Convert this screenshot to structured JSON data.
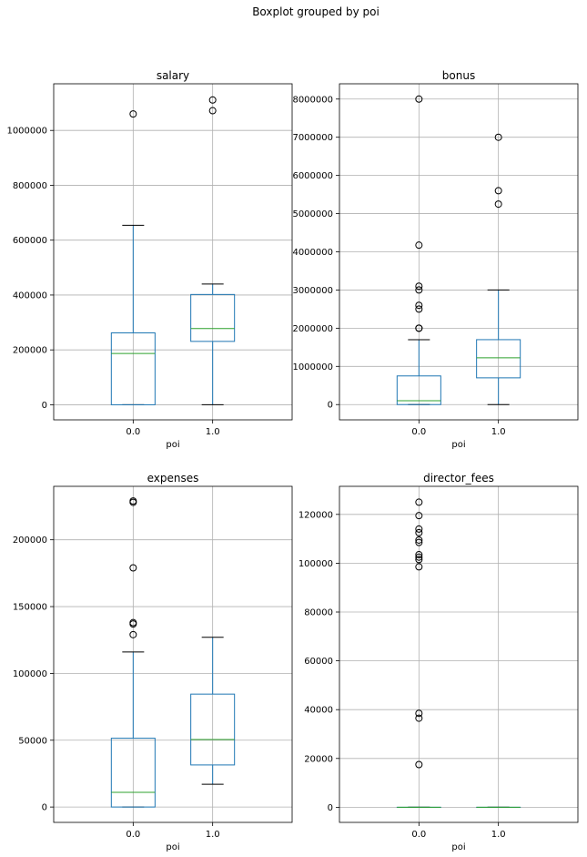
{
  "figure": {
    "suptitle": "Boxplot grouped by poi",
    "colors": {
      "box": "#1f77b4",
      "median": "#2ca02c",
      "whisker": "#1f77b4",
      "cap": "#000000",
      "flier": "#000000",
      "grid": "#b0b0b0"
    }
  },
  "chart_data": [
    {
      "type": "boxplot",
      "title": "salary",
      "xlabel": "poi",
      "ylabel": "",
      "categories": [
        "0.0",
        "1.0"
      ],
      "yticks": [
        0,
        200000,
        400000,
        600000,
        800000,
        1000000
      ],
      "ytick_labels": [
        "0",
        "200000",
        "400000",
        "600000",
        "800000",
        "1000000"
      ],
      "ylim": [
        -55000,
        1170000
      ],
      "grid": true,
      "boxes": [
        {
          "min": 0,
          "q1": 0,
          "median": 187000,
          "q3": 262000,
          "max": 654000,
          "fliers": [
            1060000
          ]
        },
        {
          "min": 0,
          "q1": 231000,
          "median": 278000,
          "q3": 402000,
          "max": 440000,
          "fliers": [
            1072000,
            1111000
          ]
        }
      ]
    },
    {
      "type": "boxplot",
      "title": "bonus",
      "xlabel": "poi",
      "ylabel": "",
      "categories": [
        "0.0",
        "1.0"
      ],
      "yticks": [
        0,
        1000000,
        2000000,
        3000000,
        4000000,
        5000000,
        6000000,
        7000000,
        8000000
      ],
      "ytick_labels": [
        "0",
        "1000000",
        "2000000",
        "3000000",
        "4000000",
        "5000000",
        "6000000",
        "7000000",
        "8000000"
      ],
      "ylim": [
        -400000,
        8400000
      ],
      "grid": true,
      "boxes": [
        {
          "min": 0,
          "q1": 0,
          "median": 100000,
          "q3": 750000,
          "max": 1700000,
          "fliers": [
            2000000,
            2000000,
            2500000,
            2600000,
            3000000,
            3100000,
            4175000,
            8000000
          ]
        },
        {
          "min": 0,
          "q1": 700000,
          "median": 1225000,
          "q3": 1700000,
          "max": 3000000,
          "fliers": [
            5250000,
            5600000,
            7000000
          ]
        }
      ]
    },
    {
      "type": "boxplot",
      "title": "expenses",
      "xlabel": "poi",
      "ylabel": "",
      "categories": [
        "0.0",
        "1.0"
      ],
      "yticks": [
        0,
        50000,
        100000,
        150000,
        200000
      ],
      "ytick_labels": [
        "0",
        "50000",
        "100000",
        "150000",
        "200000"
      ],
      "ylim": [
        -11500,
        240000
      ],
      "grid": true,
      "boxes": [
        {
          "min": 0,
          "q1": 0,
          "median": 11000,
          "q3": 51500,
          "max": 116000,
          "fliers": [
            129000,
            137000,
            138000,
            179000,
            228000,
            229000
          ]
        },
        {
          "min": 17000,
          "q1": 31500,
          "median": 50500,
          "q3": 84500,
          "max": 127000,
          "fliers": []
        }
      ]
    },
    {
      "type": "boxplot",
      "title": "director_fees",
      "xlabel": "poi",
      "ylabel": "",
      "categories": [
        "0.0",
        "1.0"
      ],
      "yticks": [
        0,
        20000,
        40000,
        60000,
        80000,
        100000,
        120000
      ],
      "ytick_labels": [
        "0",
        "20000",
        "40000",
        "60000",
        "80000",
        "100000",
        "120000"
      ],
      "ylim": [
        -6200,
        131500
      ],
      "grid": true,
      "boxes": [
        {
          "min": 0,
          "q1": 0,
          "median": 0,
          "q3": 0,
          "max": 0,
          "fliers": [
            17500,
            36500,
            38500,
            98500,
            101500,
            102500,
            103500,
            108500,
            109500,
            112500,
            114000,
            119500,
            125000
          ]
        },
        {
          "min": 0,
          "q1": 0,
          "median": 0,
          "q3": 0,
          "max": 0,
          "fliers": []
        }
      ]
    }
  ]
}
